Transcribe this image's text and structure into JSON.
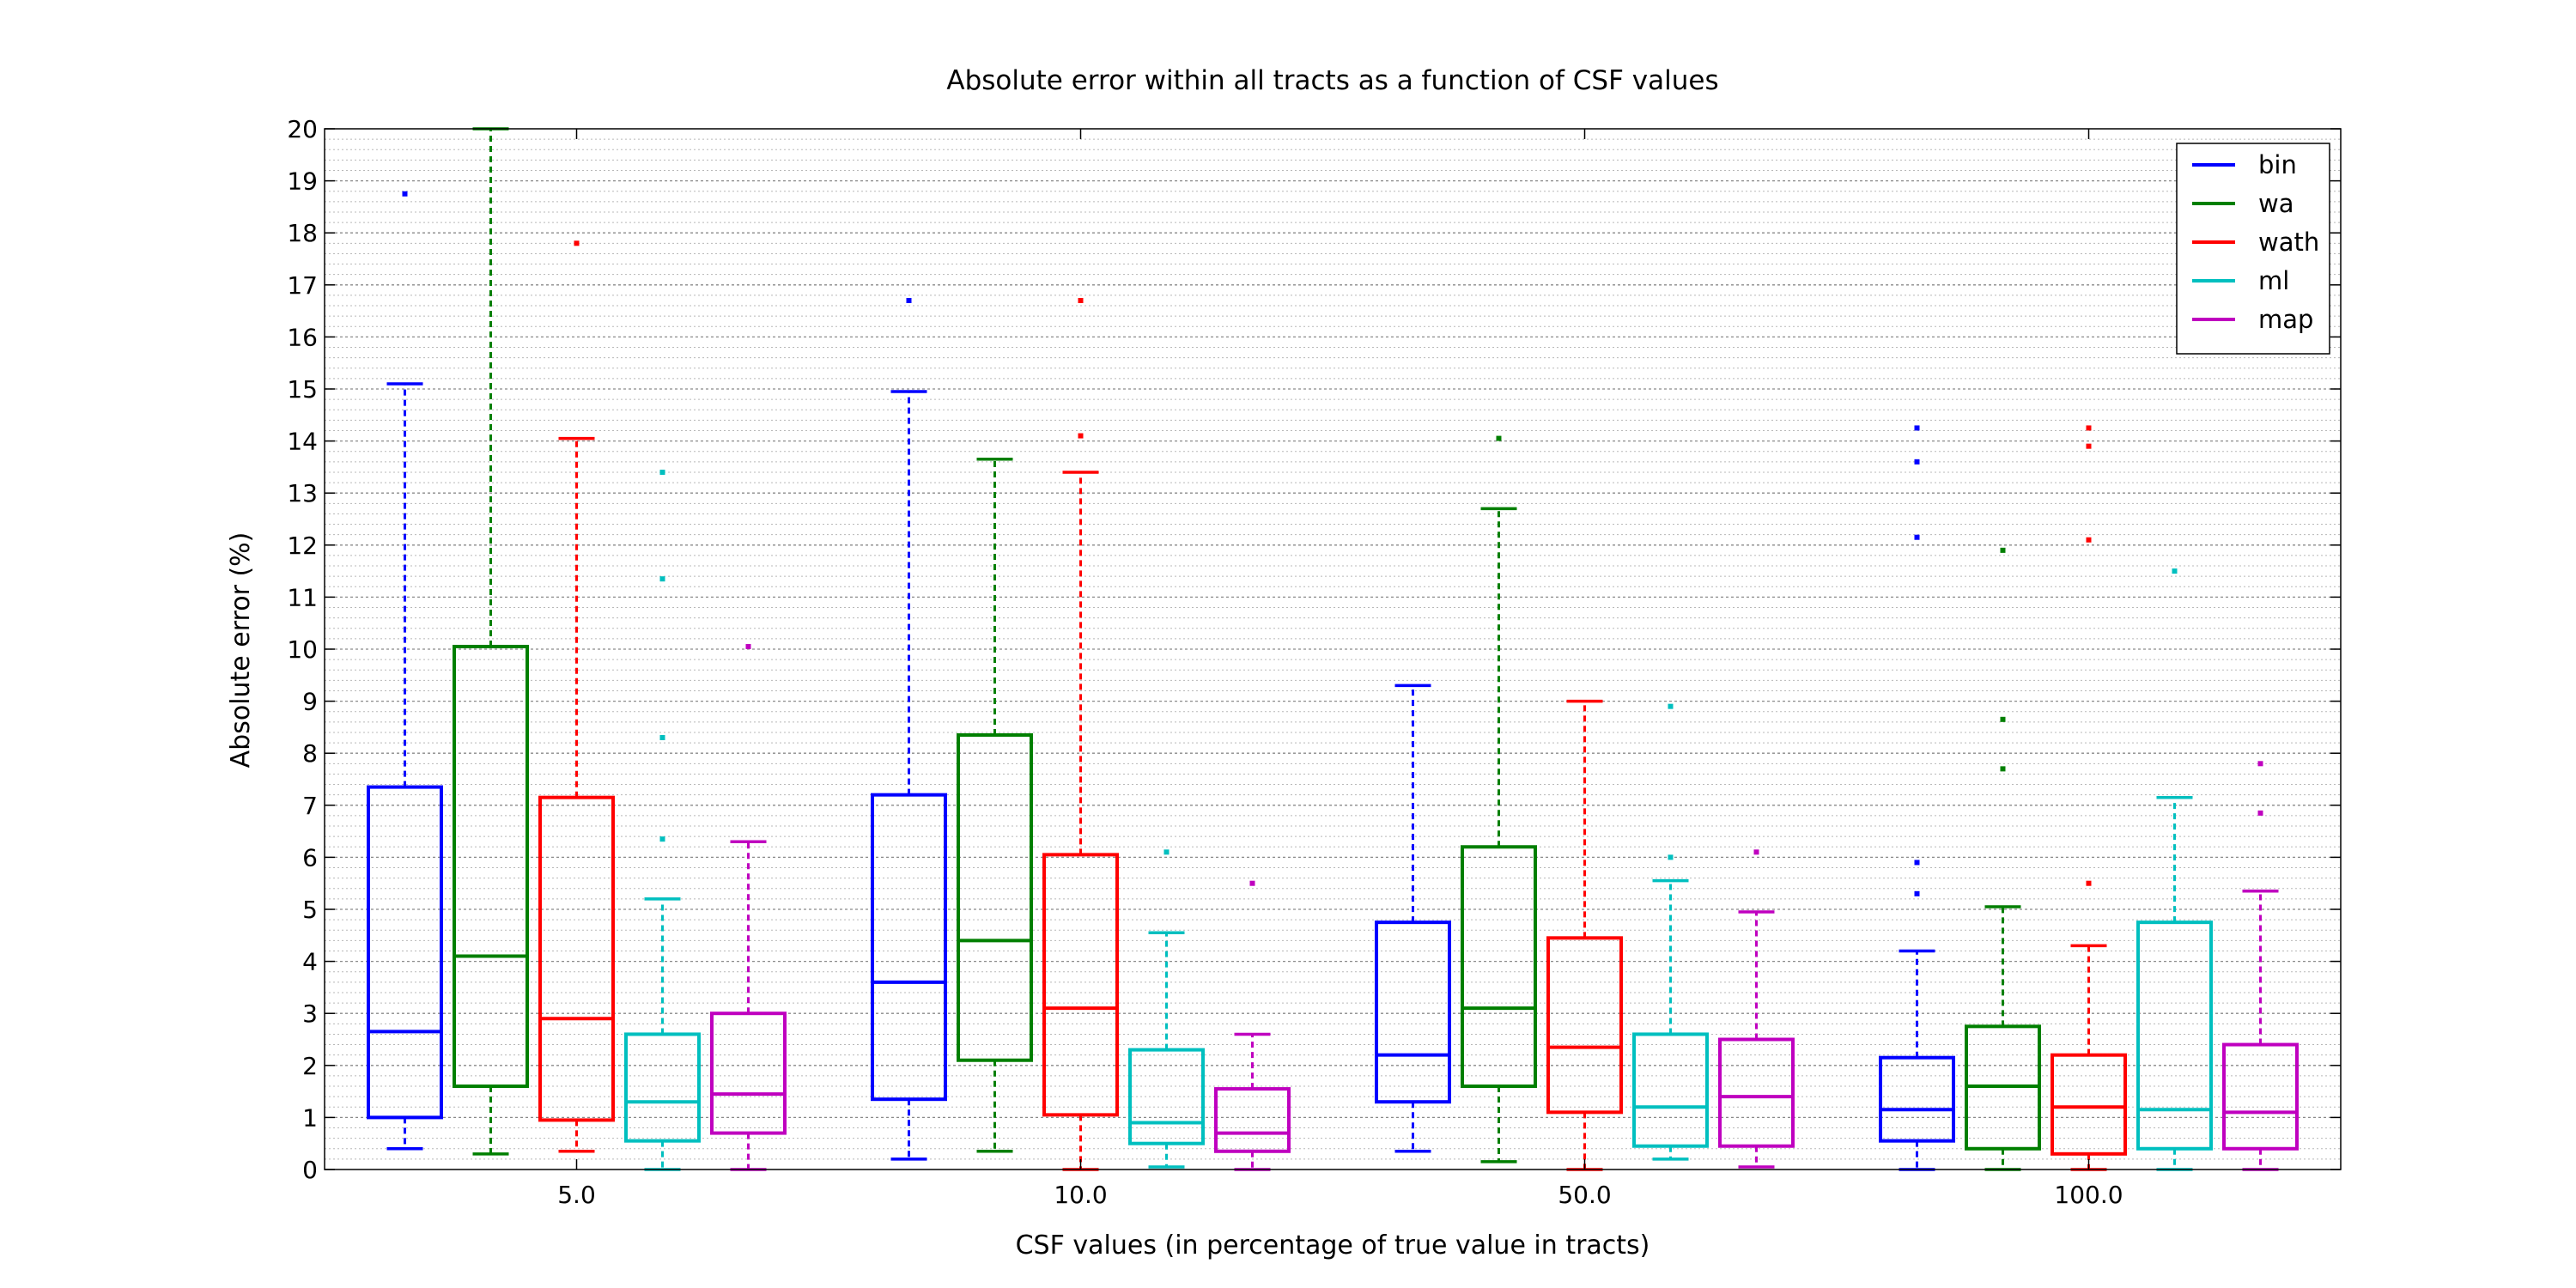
{
  "chart_data": {
    "type": "box",
    "title": "Absolute error within all tracts as a function of CSF values",
    "xlabel": "CSF values (in percentage of true value in tracts)",
    "ylabel": "Absolute error (%)",
    "ylim": [
      0,
      20
    ],
    "yticks": [
      0,
      1,
      2,
      3,
      4,
      5,
      6,
      7,
      8,
      9,
      10,
      11,
      12,
      13,
      14,
      15,
      16,
      17,
      18,
      19,
      20
    ],
    "minor_grid_step": 0.2,
    "grid": true,
    "legend_position": "top-right",
    "categories": [
      "5.0",
      "10.0",
      "50.0",
      "100.0"
    ],
    "series": [
      {
        "name": "bin",
        "color": "#0000ff",
        "boxes": [
          {
            "whisker_low": 0.4,
            "q1": 1.0,
            "median": 2.65,
            "q3": 7.35,
            "whisker_high": 15.1,
            "outliers": [
              18.75
            ]
          },
          {
            "whisker_low": 0.2,
            "q1": 1.35,
            "median": 3.6,
            "q3": 7.2,
            "whisker_high": 14.95,
            "outliers": [
              16.7
            ]
          },
          {
            "whisker_low": 0.35,
            "q1": 1.3,
            "median": 2.2,
            "q3": 4.75,
            "whisker_high": 9.3,
            "outliers": []
          },
          {
            "whisker_low": 0.0,
            "q1": 0.55,
            "median": 1.15,
            "q3": 2.15,
            "whisker_high": 4.2,
            "outliers": [
              5.3,
              5.9,
              12.15,
              13.6,
              14.25
            ]
          }
        ]
      },
      {
        "name": "wa",
        "color": "#007f00",
        "boxes": [
          {
            "whisker_low": 0.3,
            "q1": 1.6,
            "median": 4.1,
            "q3": 10.05,
            "whisker_high": 20.0,
            "outliers": []
          },
          {
            "whisker_low": 0.35,
            "q1": 2.1,
            "median": 4.4,
            "q3": 8.35,
            "whisker_high": 13.65,
            "outliers": []
          },
          {
            "whisker_low": 0.15,
            "q1": 1.6,
            "median": 3.1,
            "q3": 6.2,
            "whisker_high": 12.7,
            "outliers": [
              14.05
            ]
          },
          {
            "whisker_low": 0.0,
            "q1": 0.4,
            "median": 1.6,
            "q3": 2.75,
            "whisker_high": 5.05,
            "outliers": [
              7.7,
              8.65,
              11.9
            ]
          }
        ]
      },
      {
        "name": "wath",
        "color": "#ff0000",
        "boxes": [
          {
            "whisker_low": 0.35,
            "q1": 0.95,
            "median": 2.9,
            "q3": 7.15,
            "whisker_high": 14.05,
            "outliers": [
              17.8
            ]
          },
          {
            "whisker_low": 0.0,
            "q1": 1.05,
            "median": 3.1,
            "q3": 6.05,
            "whisker_high": 13.4,
            "outliers": [
              14.1,
              16.7
            ]
          },
          {
            "whisker_low": 0.0,
            "q1": 1.1,
            "median": 2.35,
            "q3": 4.45,
            "whisker_high": 9.0,
            "outliers": []
          },
          {
            "whisker_low": 0.0,
            "q1": 0.3,
            "median": 1.2,
            "q3": 2.2,
            "whisker_high": 4.3,
            "outliers": [
              5.5,
              12.1,
              13.9,
              14.25
            ]
          }
        ]
      },
      {
        "name": "ml",
        "color": "#00bfbf",
        "boxes": [
          {
            "whisker_low": 0.0,
            "q1": 0.55,
            "median": 1.3,
            "q3": 2.6,
            "whisker_high": 5.2,
            "outliers": [
              6.35,
              8.3,
              11.35,
              13.4
            ]
          },
          {
            "whisker_low": 0.05,
            "q1": 0.5,
            "median": 0.9,
            "q3": 2.3,
            "whisker_high": 4.55,
            "outliers": [
              6.1
            ]
          },
          {
            "whisker_low": 0.2,
            "q1": 0.45,
            "median": 1.2,
            "q3": 2.6,
            "whisker_high": 5.55,
            "outliers": [
              6.0,
              8.9
            ]
          },
          {
            "whisker_low": 0.0,
            "q1": 0.4,
            "median": 1.15,
            "q3": 4.75,
            "whisker_high": 7.15,
            "outliers": [
              11.5
            ]
          }
        ]
      },
      {
        "name": "map",
        "color": "#bf00bf",
        "boxes": [
          {
            "whisker_low": 0.0,
            "q1": 0.7,
            "median": 1.45,
            "q3": 3.0,
            "whisker_high": 6.3,
            "outliers": [
              10.05
            ]
          },
          {
            "whisker_low": 0.0,
            "q1": 0.35,
            "median": 0.7,
            "q3": 1.55,
            "whisker_high": 2.6,
            "outliers": [
              5.5
            ]
          },
          {
            "whisker_low": 0.05,
            "q1": 0.45,
            "median": 1.4,
            "q3": 2.5,
            "whisker_high": 4.95,
            "outliers": [
              6.1
            ]
          },
          {
            "whisker_low": 0.0,
            "q1": 0.4,
            "median": 1.1,
            "q3": 2.4,
            "whisker_high": 5.35,
            "outliers": [
              6.85,
              7.8
            ]
          }
        ]
      }
    ]
  }
}
